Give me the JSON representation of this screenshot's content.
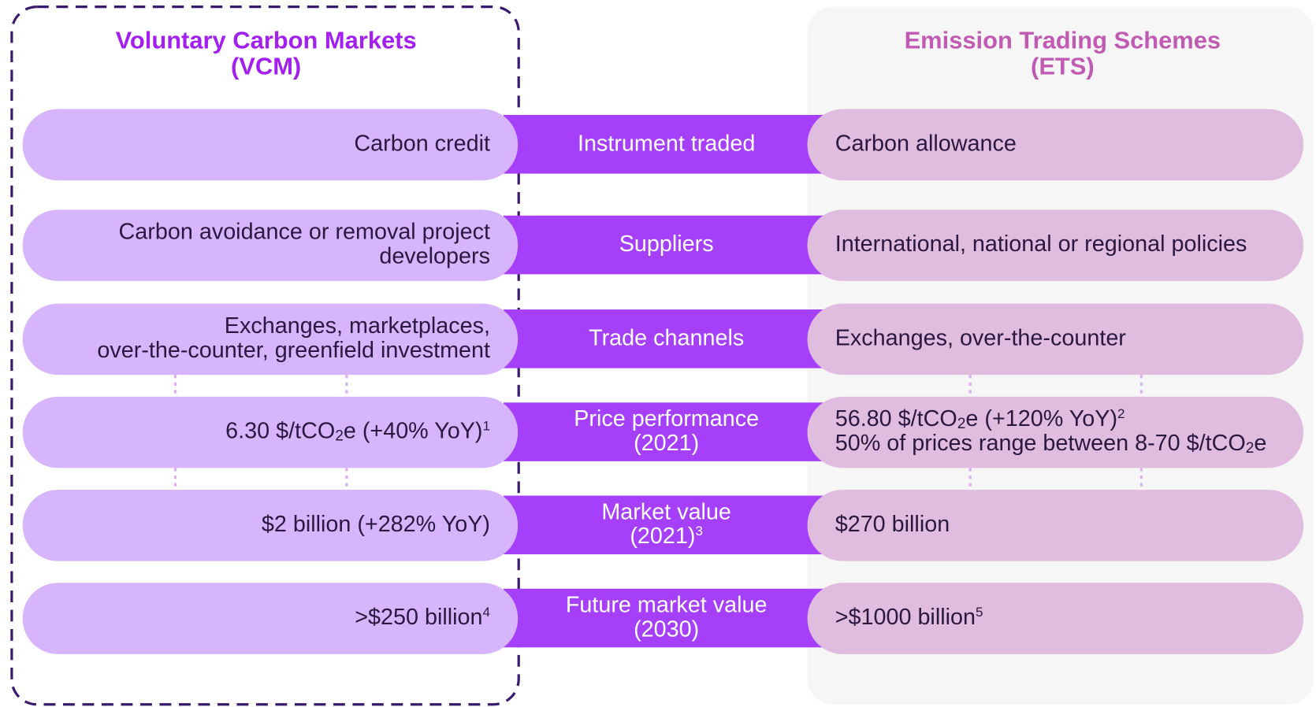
{
  "headers": {
    "vcm": [
      "Voluntary Carbon Markets",
      "(VCM)"
    ],
    "ets": [
      "Emission Trading Schemes",
      "(ETS)"
    ]
  },
  "rows": [
    {
      "vcm": [
        [
          {
            "text": "Carbon credit"
          }
        ]
      ],
      "label": [
        [
          {
            "text": "Instrument traded"
          }
        ]
      ],
      "ets": [
        [
          {
            "text": "Carbon allowance"
          }
        ]
      ]
    },
    {
      "vcm": [
        [
          {
            "text": "Carbon avoidance or removal project"
          }
        ],
        [
          {
            "text": "developers"
          }
        ]
      ],
      "label": [
        [
          {
            "text": "Suppliers"
          }
        ]
      ],
      "ets": [
        [
          {
            "text": "International, national or regional policies"
          }
        ]
      ]
    },
    {
      "vcm": [
        [
          {
            "text": "Exchanges, marketplaces,"
          }
        ],
        [
          {
            "text": "over-the-counter, greenfield investment"
          }
        ]
      ],
      "label": [
        [
          {
            "text": "Trade channels"
          }
        ]
      ],
      "ets": [
        [
          {
            "text": "Exchanges, over-the-counter"
          }
        ]
      ]
    },
    {
      "vcm": [
        [
          {
            "text": "6.30 $/tCO"
          },
          {
            "sub": "2"
          },
          {
            "text": "e (+40% YoY)"
          },
          {
            "sup": "1"
          }
        ]
      ],
      "label": [
        [
          {
            "text": "Price performance"
          }
        ],
        [
          {
            "text": "(2021)"
          }
        ]
      ],
      "ets": [
        [
          {
            "text": "56.80 $/tCO"
          },
          {
            "sub": "2"
          },
          {
            "text": "e (+120% YoY)"
          },
          {
            "sup": "2"
          }
        ],
        [
          {
            "text": "50% of prices range between 8-70 $/tCO"
          },
          {
            "sub": "2"
          },
          {
            "text": "e"
          }
        ]
      ]
    },
    {
      "vcm": [
        [
          {
            "text": "$2 billion (+282% YoY)"
          }
        ]
      ],
      "label": [
        [
          {
            "text": "Market value"
          }
        ],
        [
          {
            "text": "(2021)"
          },
          {
            "sup": "3"
          }
        ]
      ],
      "ets": [
        [
          {
            "text": "$270 billion"
          }
        ]
      ]
    },
    {
      "vcm": [
        [
          {
            "text": ">$250 billion"
          },
          {
            "sup": "4"
          }
        ]
      ],
      "label": [
        [
          {
            "text": "Future market value"
          }
        ],
        [
          {
            "text": "(2030)"
          }
        ]
      ],
      "ets": [
        [
          {
            "text": ">$1000 billion"
          },
          {
            "sup": "5"
          }
        ]
      ]
    }
  ]
}
